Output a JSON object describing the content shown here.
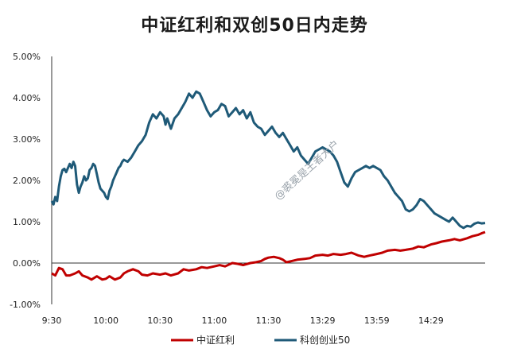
{
  "chart_data": {
    "type": "line",
    "title": "中证红利和双创50日内走势",
    "y_ticks": [
      "5.00%",
      "4.00%",
      "3.00%",
      "2.00%",
      "1.00%",
      "0.00%",
      "-1.00%"
    ],
    "ylim": [
      -1.0,
      5.0
    ],
    "x_ticks": [
      "9:30",
      "10:00",
      "10:30",
      "11:00",
      "11:30",
      "13:29",
      "13:59",
      "14:29"
    ],
    "x_tick_index": [
      0,
      30,
      60,
      90,
      120,
      150,
      180,
      210
    ],
    "x_count": 240,
    "legend_position": "bottom",
    "watermark": "@裘冕是王者大户",
    "series": [
      {
        "name": "中证红利",
        "color": "#c00000",
        "points": [
          [
            0,
            -0.25
          ],
          [
            2,
            -0.3
          ],
          [
            4,
            -0.12
          ],
          [
            6,
            -0.15
          ],
          [
            8,
            -0.3
          ],
          [
            10,
            -0.3
          ],
          [
            13,
            -0.25
          ],
          [
            15,
            -0.2
          ],
          [
            17,
            -0.3
          ],
          [
            20,
            -0.35
          ],
          [
            22,
            -0.4
          ],
          [
            25,
            -0.32
          ],
          [
            28,
            -0.4
          ],
          [
            30,
            -0.38
          ],
          [
            32,
            -0.32
          ],
          [
            35,
            -0.4
          ],
          [
            38,
            -0.35
          ],
          [
            40,
            -0.25
          ],
          [
            42,
            -0.2
          ],
          [
            45,
            -0.15
          ],
          [
            48,
            -0.2
          ],
          [
            50,
            -0.28
          ],
          [
            53,
            -0.3
          ],
          [
            56,
            -0.25
          ],
          [
            60,
            -0.28
          ],
          [
            63,
            -0.25
          ],
          [
            66,
            -0.3
          ],
          [
            70,
            -0.25
          ],
          [
            73,
            -0.15
          ],
          [
            76,
            -0.18
          ],
          [
            80,
            -0.15
          ],
          [
            83,
            -0.1
          ],
          [
            86,
            -0.12
          ],
          [
            90,
            -0.08
          ],
          [
            93,
            -0.05
          ],
          [
            96,
            -0.08
          ],
          [
            100,
            0.0
          ],
          [
            103,
            -0.02
          ],
          [
            106,
            -0.05
          ],
          [
            110,
            0.0
          ],
          [
            113,
            0.02
          ],
          [
            116,
            0.05
          ],
          [
            118,
            0.1
          ],
          [
            120,
            0.13
          ],
          [
            123,
            0.15
          ],
          [
            126,
            0.12
          ],
          [
            128,
            0.08
          ],
          [
            130,
            0.02
          ],
          [
            133,
            0.05
          ],
          [
            136,
            0.08
          ],
          [
            140,
            0.1
          ],
          [
            143,
            0.12
          ],
          [
            146,
            0.18
          ],
          [
            150,
            0.2
          ],
          [
            153,
            0.18
          ],
          [
            156,
            0.22
          ],
          [
            160,
            0.2
          ],
          [
            163,
            0.22
          ],
          [
            166,
            0.25
          ],
          [
            170,
            0.18
          ],
          [
            173,
            0.15
          ],
          [
            176,
            0.18
          ],
          [
            180,
            0.22
          ],
          [
            183,
            0.25
          ],
          [
            186,
            0.3
          ],
          [
            190,
            0.32
          ],
          [
            193,
            0.3
          ],
          [
            196,
            0.32
          ],
          [
            200,
            0.35
          ],
          [
            203,
            0.4
          ],
          [
            206,
            0.38
          ],
          [
            210,
            0.45
          ],
          [
            213,
            0.48
          ],
          [
            216,
            0.52
          ],
          [
            220,
            0.55
          ],
          [
            223,
            0.58
          ],
          [
            226,
            0.55
          ],
          [
            230,
            0.6
          ],
          [
            233,
            0.65
          ],
          [
            236,
            0.68
          ],
          [
            238,
            0.72
          ],
          [
            240,
            0.75
          ]
        ]
      },
      {
        "name": "科创创业50",
        "color": "#1f5a78",
        "points": [
          [
            0,
            1.5
          ],
          [
            1,
            1.42
          ],
          [
            2,
            1.6
          ],
          [
            3,
            1.5
          ],
          [
            4,
            1.85
          ],
          [
            5,
            2.1
          ],
          [
            6,
            2.25
          ],
          [
            7,
            2.28
          ],
          [
            8,
            2.2
          ],
          [
            9,
            2.3
          ],
          [
            10,
            2.4
          ],
          [
            11,
            2.3
          ],
          [
            12,
            2.45
          ],
          [
            13,
            2.35
          ],
          [
            14,
            1.9
          ],
          [
            15,
            1.7
          ],
          [
            16,
            1.85
          ],
          [
            17,
            1.95
          ],
          [
            18,
            2.1
          ],
          [
            19,
            2.0
          ],
          [
            20,
            2.05
          ],
          [
            21,
            2.25
          ],
          [
            22,
            2.3
          ],
          [
            23,
            2.4
          ],
          [
            24,
            2.35
          ],
          [
            25,
            2.15
          ],
          [
            26,
            1.95
          ],
          [
            27,
            1.8
          ],
          [
            28,
            1.75
          ],
          [
            29,
            1.7
          ],
          [
            30,
            1.6
          ],
          [
            31,
            1.55
          ],
          [
            32,
            1.75
          ],
          [
            33,
            1.85
          ],
          [
            34,
            2.0
          ],
          [
            35,
            2.1
          ],
          [
            36,
            2.2
          ],
          [
            37,
            2.3
          ],
          [
            38,
            2.35
          ],
          [
            39,
            2.45
          ],
          [
            40,
            2.5
          ],
          [
            42,
            2.45
          ],
          [
            44,
            2.55
          ],
          [
            46,
            2.7
          ],
          [
            48,
            2.85
          ],
          [
            50,
            2.95
          ],
          [
            52,
            3.1
          ],
          [
            54,
            3.4
          ],
          [
            56,
            3.6
          ],
          [
            58,
            3.5
          ],
          [
            60,
            3.65
          ],
          [
            62,
            3.55
          ],
          [
            63,
            3.35
          ],
          [
            64,
            3.5
          ],
          [
            66,
            3.25
          ],
          [
            68,
            3.5
          ],
          [
            70,
            3.6
          ],
          [
            72,
            3.75
          ],
          [
            74,
            3.9
          ],
          [
            76,
            4.1
          ],
          [
            78,
            4.0
          ],
          [
            80,
            4.15
          ],
          [
            82,
            4.1
          ],
          [
            84,
            3.9
          ],
          [
            86,
            3.7
          ],
          [
            88,
            3.55
          ],
          [
            90,
            3.65
          ],
          [
            92,
            3.7
          ],
          [
            94,
            3.85
          ],
          [
            96,
            3.8
          ],
          [
            98,
            3.55
          ],
          [
            100,
            3.65
          ],
          [
            102,
            3.75
          ],
          [
            104,
            3.6
          ],
          [
            106,
            3.7
          ],
          [
            108,
            3.5
          ],
          [
            110,
            3.65
          ],
          [
            112,
            3.4
          ],
          [
            114,
            3.3
          ],
          [
            116,
            3.25
          ],
          [
            118,
            3.1
          ],
          [
            120,
            3.2
          ],
          [
            122,
            3.3
          ],
          [
            124,
            3.15
          ],
          [
            126,
            3.05
          ],
          [
            128,
            3.15
          ],
          [
            130,
            3.0
          ],
          [
            132,
            2.85
          ],
          [
            134,
            2.7
          ],
          [
            136,
            2.8
          ],
          [
            138,
            2.6
          ],
          [
            140,
            2.5
          ],
          [
            142,
            2.4
          ],
          [
            144,
            2.55
          ],
          [
            146,
            2.7
          ],
          [
            148,
            2.75
          ],
          [
            150,
            2.8
          ],
          [
            152,
            2.75
          ],
          [
            154,
            2.7
          ],
          [
            156,
            2.6
          ],
          [
            158,
            2.45
          ],
          [
            160,
            2.2
          ],
          [
            162,
            1.95
          ],
          [
            164,
            1.85
          ],
          [
            166,
            2.05
          ],
          [
            168,
            2.2
          ],
          [
            170,
            2.25
          ],
          [
            172,
            2.3
          ],
          [
            174,
            2.35
          ],
          [
            176,
            2.3
          ],
          [
            178,
            2.35
          ],
          [
            180,
            2.3
          ],
          [
            182,
            2.25
          ],
          [
            184,
            2.1
          ],
          [
            186,
            2.0
          ],
          [
            188,
            1.85
          ],
          [
            190,
            1.7
          ],
          [
            192,
            1.6
          ],
          [
            194,
            1.5
          ],
          [
            196,
            1.3
          ],
          [
            198,
            1.25
          ],
          [
            200,
            1.3
          ],
          [
            202,
            1.4
          ],
          [
            204,
            1.55
          ],
          [
            206,
            1.5
          ],
          [
            208,
            1.4
          ],
          [
            210,
            1.3
          ],
          [
            212,
            1.2
          ],
          [
            214,
            1.15
          ],
          [
            216,
            1.1
          ],
          [
            218,
            1.05
          ],
          [
            220,
            1.0
          ],
          [
            222,
            1.1
          ],
          [
            224,
            1.0
          ],
          [
            226,
            0.9
          ],
          [
            228,
            0.85
          ],
          [
            230,
            0.9
          ],
          [
            232,
            0.88
          ],
          [
            234,
            0.95
          ],
          [
            236,
            0.98
          ],
          [
            238,
            0.96
          ],
          [
            240,
            0.97
          ]
        ]
      }
    ]
  }
}
